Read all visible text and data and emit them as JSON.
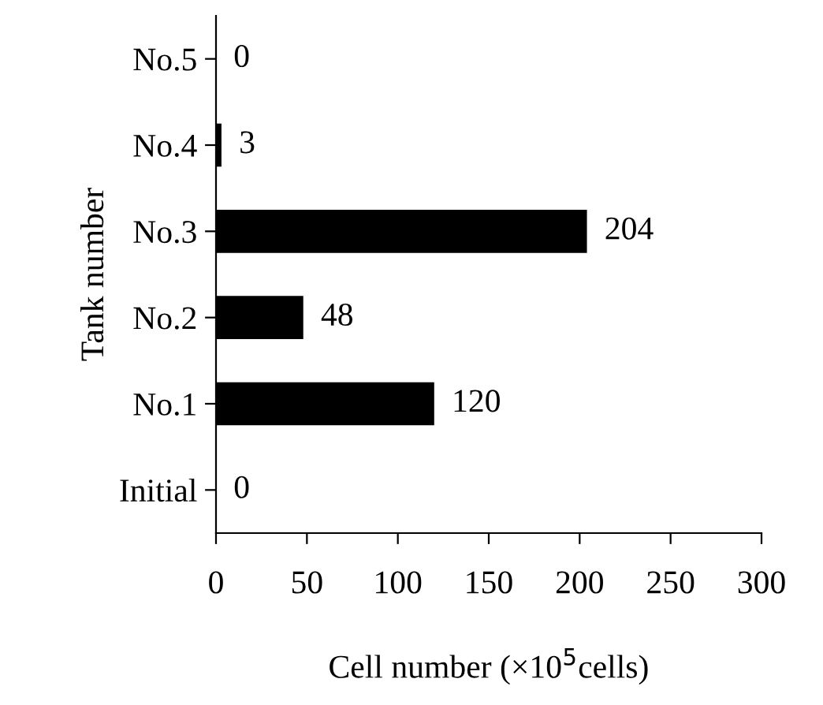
{
  "chart_data": {
    "type": "bar",
    "orientation": "horizontal",
    "categories": [
      "No.5",
      "No.4",
      "No.3",
      "No.2",
      "No.1",
      "Initial"
    ],
    "values": [
      0,
      3,
      204,
      48,
      120,
      0
    ],
    "color": "#000000",
    "data_labels": true,
    "xlim": [
      0,
      300
    ],
    "xticks": [
      0,
      50,
      100,
      150,
      200,
      250,
      300
    ],
    "xlabel": "Cell number (×10$^{5}$cells)",
    "ylabel": "Tank number",
    "grid": false,
    "legend": false
  }
}
